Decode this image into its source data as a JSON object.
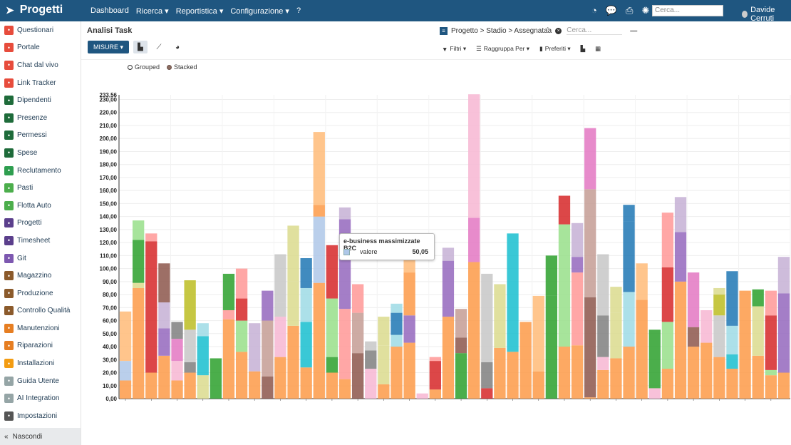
{
  "app": {
    "name": "Progetti"
  },
  "topnav": [
    "Dashboard",
    "Ricerca ▾",
    "Reportistica ▾",
    "Configurazione ▾",
    "?"
  ],
  "top_search_placeholder": "Cerca...",
  "user": "Davide Cerruti",
  "sidebar": {
    "items": [
      {
        "label": "Questionari",
        "icon": "clipboard-icon",
        "color": "#e74c3c"
      },
      {
        "label": "Portale",
        "icon": "globe-icon",
        "color": "#e74c3c"
      },
      {
        "label": "Chat dal vivo",
        "icon": "chat-icon",
        "color": "#e74c3c"
      },
      {
        "label": "Link Tracker",
        "icon": "link-icon",
        "color": "#e74c3c"
      },
      {
        "label": "Dipendenti",
        "icon": "users-icon",
        "color": "#1e6b3a"
      },
      {
        "label": "Presenze",
        "icon": "person-icon",
        "color": "#1e6b3a"
      },
      {
        "label": "Permessi",
        "icon": "circle-icon",
        "color": "#1e6b3a"
      },
      {
        "label": "Spese",
        "icon": "dollar-icon",
        "color": "#1e6b3a"
      },
      {
        "label": "Reclutamento",
        "icon": "search-people-icon",
        "color": "#2e9e4f"
      },
      {
        "label": "Pasti",
        "icon": "cutlery-icon",
        "color": "#4cae4c"
      },
      {
        "label": "Flotta Auto",
        "icon": "car-icon",
        "color": "#4cae4c"
      },
      {
        "label": "Progetti",
        "icon": "puzzle-icon",
        "color": "#5b3f8c"
      },
      {
        "label": "Timesheet",
        "icon": "clock-icon",
        "color": "#5b3f8c"
      },
      {
        "label": "Git",
        "icon": "git-icon",
        "color": "#7d58b0"
      },
      {
        "label": "Magazzino",
        "icon": "warehouse-icon",
        "color": "#8b5a2b"
      },
      {
        "label": "Produzione",
        "icon": "wrench-icon",
        "color": "#8b5a2b"
      },
      {
        "label": "Controllo Qualità",
        "icon": "quality-icon",
        "color": "#8b5a2b"
      },
      {
        "label": "Manutenzioni",
        "icon": "hammer-icon",
        "color": "#e67e22"
      },
      {
        "label": "Riparazioni",
        "icon": "tools-icon",
        "color": "#e67e22"
      },
      {
        "label": "Installazioni",
        "icon": "install-icon",
        "color": "#f39c12"
      },
      {
        "label": "Guida Utente",
        "icon": "guide-icon",
        "color": "#95a5a6"
      },
      {
        "label": "AI Integration",
        "icon": "ai-icon",
        "color": "#95a5a6"
      },
      {
        "label": "Impostazioni",
        "icon": "gear-icon",
        "color": "#555555"
      }
    ],
    "hide_label": "Nascondi"
  },
  "page": {
    "title": "Analisi Task",
    "facet": "Progetto > Stadio > Assegnatа̂а",
    "search_placeholder": "Cerca...",
    "measures_label": "MISURE ▾",
    "filters": [
      "Filtri ▾",
      "Raggruppa Per ▾",
      "Preferiti ▾"
    ]
  },
  "legend": {
    "grouped": "Grouped",
    "stacked": "Stacked"
  },
  "tooltip": {
    "title": "e-business massimizzate B2C",
    "key": "valere",
    "value": "50,05"
  },
  "chart_data": {
    "type": "bar",
    "stacked": true,
    "ylim": [
      0,
      233.56
    ],
    "y_ticks": [
      "0,00",
      "10,00",
      "20,00",
      "30,00",
      "40,00",
      "50,00",
      "60,00",
      "70,00",
      "80,00",
      "90,00",
      "100,00",
      "110,00",
      "120,00",
      "130,00",
      "140,00",
      "150,00",
      "160,00",
      "170,00",
      "180,00",
      "190,00",
      "200,00",
      "210,00",
      "220,00",
      "230,00"
    ],
    "y_max_label": "233,56",
    "grid": true,
    "colors": [
      "#fd9a48",
      "#aec7e8",
      "#2ca02c",
      "#98df8a",
      "#d62728",
      "#ff9896",
      "#9467bd",
      "#c5b0d5",
      "#8c564b",
      "#c49c94",
      "#e377c2",
      "#f7b6d2",
      "#7f7f7f",
      "#c7c7c7",
      "#bcbd22",
      "#dbdb8d",
      "#17becf",
      "#9edae5",
      "#1f77b4",
      "#ffbb78"
    ],
    "bars": [
      [
        [
          0,
          14
        ],
        [
          1,
          15
        ],
        [
          19,
          38
        ]
      ],
      [
        [
          0,
          85
        ],
        [
          15,
          4
        ],
        [
          2,
          33
        ],
        [
          3,
          15
        ]
      ],
      [
        [
          0,
          20
        ],
        [
          4,
          101
        ],
        [
          5,
          6
        ]
      ],
      [
        [
          0,
          33
        ],
        [
          6,
          21
        ],
        [
          7,
          20
        ],
        [
          8,
          30
        ]
      ],
      [
        [
          0,
          14
        ],
        [
          11,
          15
        ],
        [
          10,
          17
        ],
        [
          12,
          13
        ]
      ],
      [
        [
          0,
          20
        ],
        [
          12,
          8
        ],
        [
          13,
          25
        ],
        [
          14,
          38
        ]
      ],
      [
        [
          15,
          18
        ],
        [
          16,
          30
        ],
        [
          17,
          10
        ]
      ],
      [
        [
          2,
          31
        ]
      ],
      [
        [
          0,
          61
        ],
        [
          5,
          7
        ],
        [
          2,
          28
        ]
      ],
      [
        [
          0,
          36
        ],
        [
          3,
          24
        ],
        [
          4,
          17
        ],
        [
          5,
          23
        ]
      ],
      [
        [
          0,
          21
        ],
        [
          7,
          37
        ]
      ],
      [
        [
          8,
          17
        ],
        [
          9,
          43
        ],
        [
          6,
          23
        ]
      ],
      [
        [
          0,
          32
        ],
        [
          11,
          31
        ],
        [
          13,
          11
        ],
        [
          13,
          37
        ]
      ],
      [
        [
          0,
          56
        ],
        [
          15,
          34
        ],
        [
          15,
          43
        ]
      ],
      [
        [
          0,
          24
        ],
        [
          16,
          35
        ],
        [
          17,
          26
        ],
        [
          18,
          23
        ]
      ],
      [
        [
          0,
          89
        ],
        [
          1,
          51
        ],
        [
          0,
          9
        ],
        [
          19,
          56
        ]
      ],
      [
        [
          0,
          20
        ],
        [
          2,
          12
        ],
        [
          3,
          45
        ],
        [
          4,
          41
        ]
      ],
      [
        [
          0,
          15
        ],
        [
          5,
          54
        ],
        [
          6,
          69
        ],
        [
          7,
          9
        ]
      ],
      [
        [
          8,
          35
        ],
        [
          9,
          31
        ],
        [
          5,
          22
        ]
      ],
      [
        [
          11,
          23
        ],
        [
          12,
          14
        ],
        [
          13,
          7
        ]
      ],
      [
        [
          0,
          11
        ],
        [
          15,
          30
        ],
        [
          15,
          22
        ]
      ],
      [
        [
          0,
          40
        ],
        [
          17,
          9
        ],
        [
          18,
          17
        ],
        [
          17,
          7
        ]
      ],
      [
        [
          0,
          43
        ],
        [
          6,
          21
        ],
        [
          0,
          33
        ],
        [
          19,
          25
        ]
      ],
      [
        [
          11,
          4
        ]
      ],
      [
        [
          0,
          7
        ],
        [
          4,
          22
        ],
        [
          5,
          3
        ]
      ],
      [
        [
          0,
          63
        ],
        [
          6,
          43
        ],
        [
          7,
          10
        ]
      ],
      [
        [
          2,
          35
        ],
        [
          8,
          12
        ],
        [
          9,
          22
        ]
      ],
      [
        [
          0,
          105
        ],
        [
          10,
          34
        ],
        [
          11,
          95
        ]
      ],
      [
        [
          4,
          8
        ],
        [
          12,
          20
        ],
        [
          13,
          68
        ]
      ],
      [
        [
          0,
          39
        ],
        [
          15,
          49
        ]
      ],
      [
        [
          0,
          36
        ],
        [
          16,
          55
        ],
        [
          16,
          36
        ]
      ],
      [
        [
          0,
          59
        ]
      ],
      [
        [
          0,
          21
        ],
        [
          19,
          58
        ]
      ],
      [
        [
          2,
          79
        ],
        [
          2,
          31
        ]
      ],
      [
        [
          0,
          40
        ],
        [
          3,
          94
        ],
        [
          4,
          22
        ]
      ],
      [
        [
          0,
          41
        ],
        [
          5,
          56
        ],
        [
          6,
          12
        ],
        [
          7,
          26
        ]
      ],
      [
        [
          0,
          1
        ],
        [
          8,
          77
        ],
        [
          9,
          83
        ],
        [
          10,
          47
        ]
      ],
      [
        [
          0,
          22
        ],
        [
          11,
          10
        ],
        [
          12,
          32
        ],
        [
          13,
          47
        ]
      ],
      [
        [
          0,
          31
        ],
        [
          15,
          35
        ],
        [
          15,
          20
        ]
      ],
      [
        [
          0,
          40
        ],
        [
          17,
          42
        ],
        [
          18,
          54
        ],
        [
          18,
          13
        ]
      ],
      [
        [
          0,
          76
        ],
        [
          19,
          28
        ]
      ],
      [
        [
          11,
          8
        ],
        [
          2,
          45
        ]
      ],
      [
        [
          0,
          23
        ],
        [
          3,
          36
        ],
        [
          4,
          42
        ],
        [
          5,
          42
        ]
      ],
      [
        [
          0,
          90
        ],
        [
          6,
          38
        ],
        [
          7,
          27
        ]
      ],
      [
        [
          0,
          40
        ],
        [
          8,
          15
        ],
        [
          10,
          42
        ]
      ],
      [
        [
          0,
          43
        ],
        [
          11,
          25
        ]
      ],
      [
        [
          0,
          32
        ],
        [
          13,
          32
        ],
        [
          14,
          16
        ],
        [
          15,
          5
        ]
      ],
      [
        [
          0,
          23
        ],
        [
          16,
          11
        ],
        [
          17,
          22
        ],
        [
          18,
          42
        ]
      ],
      [
        [
          0,
          83
        ]
      ],
      [
        [
          0,
          33
        ],
        [
          15,
          38
        ],
        [
          2,
          13
        ]
      ],
      [
        [
          0,
          18
        ],
        [
          3,
          4
        ],
        [
          4,
          42
        ],
        [
          5,
          19
        ]
      ],
      [
        [
          0,
          20
        ],
        [
          6,
          61
        ],
        [
          7,
          28
        ]
      ]
    ]
  }
}
